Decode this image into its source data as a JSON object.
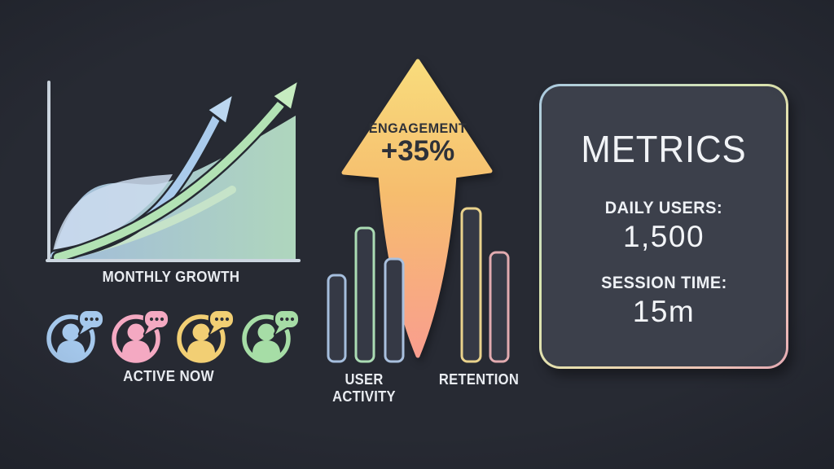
{
  "background": {
    "page": "#272a33",
    "card": "#3c404b"
  },
  "colors": {
    "text": "#e9ecf1",
    "ink": "#2e3138",
    "outline": "#262a32",
    "axis": "#ccd6e0",
    "bar_fill": "#353945",
    "area_left": "#a8c3e4",
    "area_right": "#b6dfc4",
    "wave": "#cddcee",
    "band_green": "#c9e5c9",
    "ribbon_blue": "#aacbec",
    "ribbon_blue_light": "#bcd7f0",
    "ribbon_green": "#b2e2b4",
    "ribbon_green_light": "#c6ecc0",
    "arrow_top": "#f8dc7c",
    "arrow_mid": "#f6bd6e",
    "arrow_bottom": "#f99e8e"
  },
  "growth_chart": {
    "label": "MONTHLY GROWTH"
  },
  "active_users": {
    "label": "ACTIVE NOW",
    "avatars": [
      {
        "name": "blue",
        "color": "#a5c8ec"
      },
      {
        "name": "pink",
        "color": "#f4a9c2"
      },
      {
        "name": "yellow",
        "color": "#f2cf74"
      },
      {
        "name": "green",
        "color": "#a6dda6"
      }
    ]
  },
  "engagement": {
    "label": "ENGAGEMENT",
    "value": "+35%"
  },
  "activity_chart": {
    "label": "USER ACTIVITY",
    "values": [
      53,
      82,
      63
    ],
    "bar_colors": [
      "#a5bedd",
      "#abdcb4",
      "#a9c0de"
    ]
  },
  "retention_chart": {
    "label": "RETENTION",
    "values": [
      94,
      67
    ],
    "bar_colors": [
      "#e9d28c",
      "#e2abb0"
    ]
  },
  "metrics_card": {
    "title": "METRICS",
    "stats": [
      {
        "label": "DAILY USERS:",
        "value": "1,500"
      },
      {
        "label": "SESSION TIME:",
        "value": "15m"
      }
    ]
  },
  "chart_data": [
    {
      "type": "area",
      "title": "MONTHLY GROWTH",
      "x": [
        0,
        1,
        2,
        3,
        4,
        5
      ],
      "series": [
        {
          "name": "growth-curve-blue",
          "values": [
            2,
            10,
            25,
            45,
            72,
            100
          ]
        },
        {
          "name": "growth-curve-green",
          "values": [
            1,
            8,
            20,
            38,
            65,
            95
          ]
        }
      ],
      "xlabel": "",
      "ylabel": "",
      "ylim": [
        0,
        100
      ],
      "grid": false,
      "legend": "none",
      "note": "decorative rising area with two upward curved arrows, no tick labels"
    },
    {
      "type": "bar",
      "title": "USER ACTIVITY",
      "categories": [
        "bar-1",
        "bar-2",
        "bar-3"
      ],
      "values": [
        53,
        82,
        63
      ],
      "ylim": [
        0,
        100
      ],
      "grid": false,
      "legend": "none"
    },
    {
      "type": "bar",
      "title": "RETENTION",
      "categories": [
        "bar-1",
        "bar-2"
      ],
      "values": [
        94,
        67
      ],
      "ylim": [
        0,
        100
      ],
      "grid": false,
      "legend": "none"
    },
    {
      "type": "annotation",
      "title": "ENGAGEMENT",
      "value": "+35%",
      "note": "large upward arrow between the bar groups"
    }
  ]
}
